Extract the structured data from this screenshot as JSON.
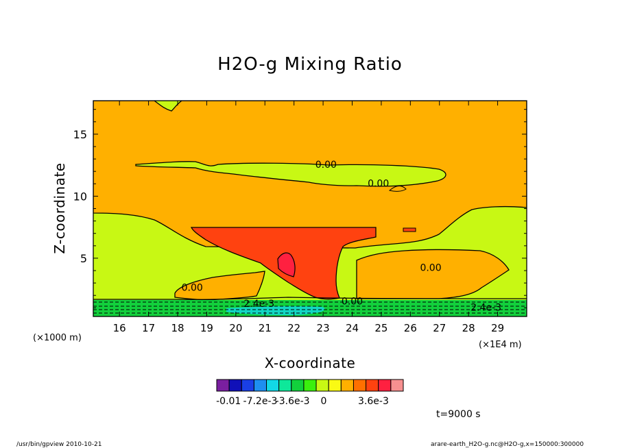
{
  "chart_data": {
    "type": "contour",
    "title": "H2O-g Mixing Ratio",
    "xlabel": "X-coordinate",
    "ylabel": "Z-coordinate",
    "x_unit_left": "(×1000 m)",
    "x_unit_right": "(×1E4 m)",
    "x_ticks": [
      "16",
      "17",
      "18",
      "19",
      "20",
      "21",
      "22",
      "23",
      "24",
      "25",
      "26",
      "27",
      "28",
      "29"
    ],
    "y_ticks": [
      "5",
      "10",
      "15"
    ],
    "xlim": [
      15.1,
      30.0
    ],
    "ylim": [
      0.3,
      17.7
    ],
    "contour_labels": [
      {
        "text": "0.00",
        "x": 23.1,
        "y": 12.5
      },
      {
        "text": "0.00",
        "x": 24.9,
        "y": 11.0
      },
      {
        "text": "0.00",
        "x": 26.7,
        "y": 4.2
      },
      {
        "text": "0.00",
        "x": 18.5,
        "y": 2.6
      },
      {
        "text": "0.00",
        "x": 24.0,
        "y": 1.5
      },
      {
        "text": "2.4e-3",
        "x": 20.8,
        "y": 1.3
      },
      {
        "text": "2.4e-3",
        "x": 28.6,
        "y": 1.0
      }
    ],
    "colorbar": {
      "colors": [
        "#7a1fa0",
        "#1010b8",
        "#1a3fe6",
        "#1e8ff0",
        "#12d8e6",
        "#0ee89a",
        "#12d03c",
        "#3af00e",
        "#c8f814",
        "#fafa14",
        "#ffb000",
        "#ff7000",
        "#ff4210",
        "#ff2040",
        "#f79090"
      ],
      "tick_labels": [
        "-0.01",
        "-7.2e-3",
        "-3.6e-3",
        "0",
        "3.6e-3"
      ]
    }
  },
  "time_label": "t=9000 s",
  "footer_left": "/usr/bin/gpview  2010-10-21",
  "footer_right": "arare-earth_H2O-g.nc@H2O-g,x=150000:300000"
}
